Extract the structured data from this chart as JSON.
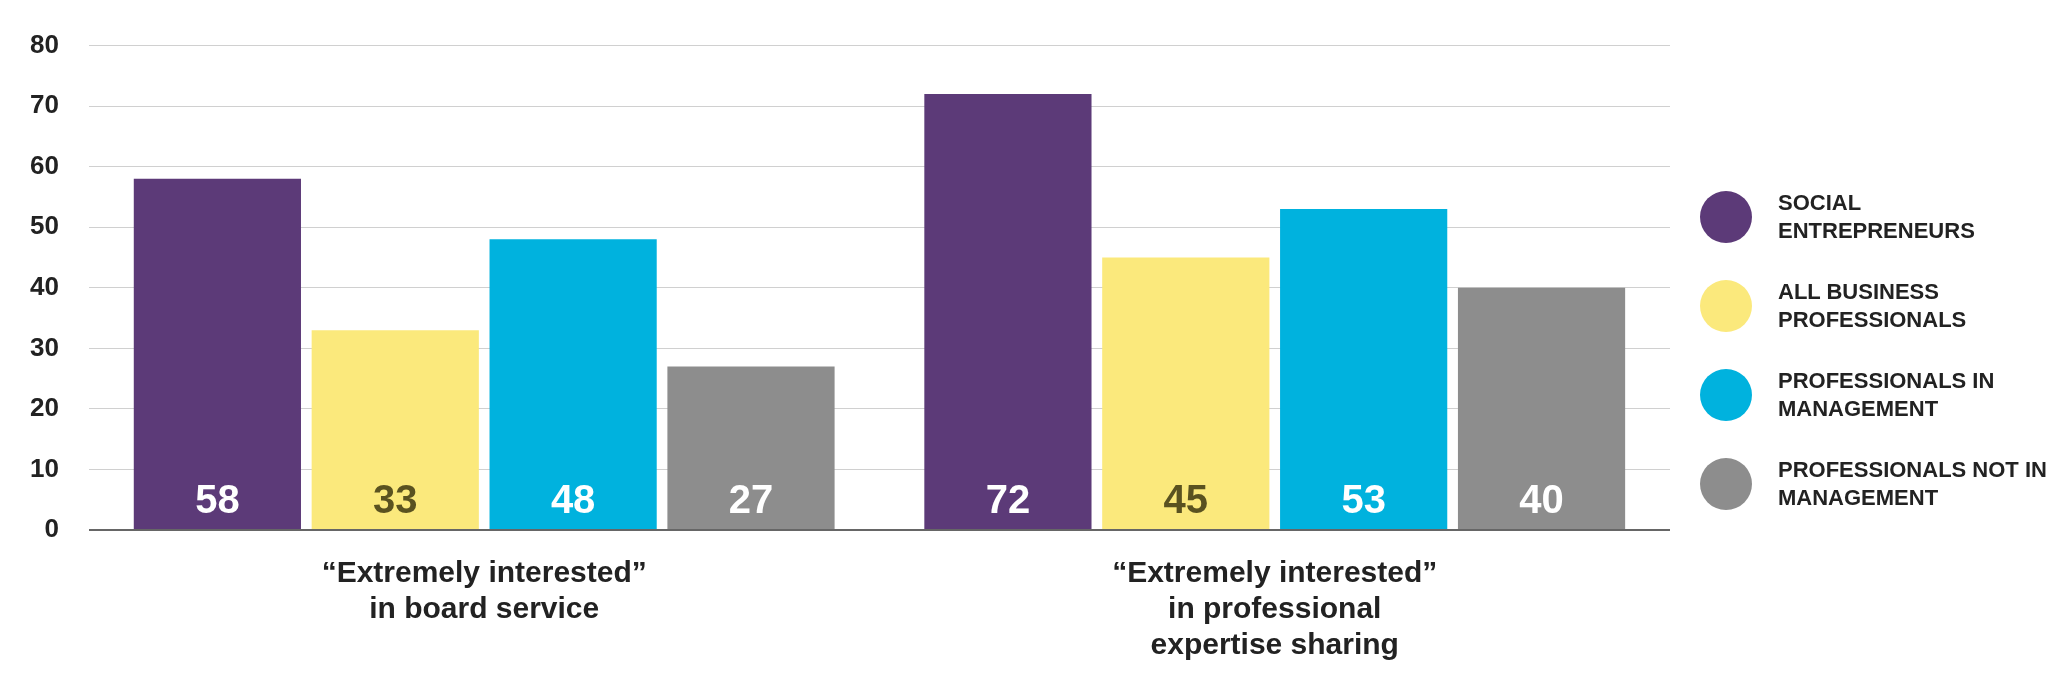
{
  "chart_data": {
    "type": "bar",
    "categories": [
      "“Extremely interested” in board service",
      "“Extremely interested” in professional expertise sharing"
    ],
    "series": [
      {
        "name": "SOCIAL ENTREPRENEURS",
        "color": "#5c3a78",
        "values": [
          58,
          72
        ]
      },
      {
        "name": "ALL BUSINESS PROFESSIONALS",
        "color": "#fbe97c",
        "values": [
          33,
          45
        ]
      },
      {
        "name": "PROFESSIONALS IN MANAGEMENT",
        "color": "#00b2de",
        "values": [
          48,
          53
        ]
      },
      {
        "name": "PROFESSIONALS NOT IN MANAGEMENT",
        "color": "#8d8d8d",
        "values": [
          27,
          40
        ]
      }
    ],
    "ylim": [
      0,
      80
    ],
    "yticks": [
      0,
      10,
      20,
      30,
      40,
      50,
      60,
      70,
      80
    ],
    "grid": "y",
    "legend": "right",
    "data_labels": true
  }
}
